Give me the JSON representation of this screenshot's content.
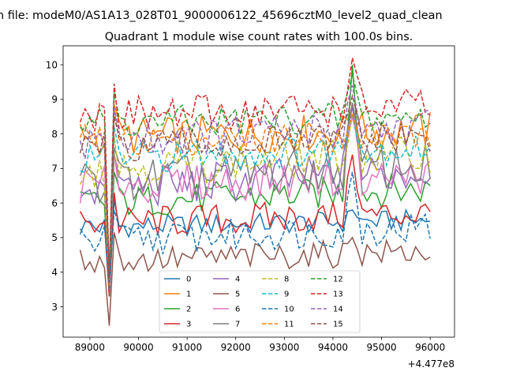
{
  "figure": {
    "suptitle": "n file: modeM0/AS1A13_028T01_9000006122_45696cztM0_level2_quad_clean"
  },
  "chart_data": {
    "type": "line",
    "title": "Quadrant 1 module wise count rates with 100.0s bins.",
    "xlabel": "",
    "ylabel": "",
    "x_offset_label": "+4.477e8",
    "xlim": [
      88450,
      96500
    ],
    "ylim": [
      2.12,
      10.55
    ],
    "x_ticks": [
      89000,
      90000,
      91000,
      92000,
      93000,
      94000,
      95000,
      96000
    ],
    "x_tick_labels": [
      "89000",
      "90000",
      "91000",
      "92000",
      "93000",
      "94000",
      "95000",
      "96000"
    ],
    "y_ticks": [
      3,
      4,
      5,
      6,
      7,
      8,
      9,
      10
    ],
    "y_tick_labels": [
      "3",
      "4",
      "5",
      "6",
      "7",
      "8",
      "9",
      "10"
    ],
    "grid": false,
    "legend": {
      "placement": "lower-center",
      "columns": 4
    },
    "x": {
      "start": 88800,
      "step": 100,
      "count": 73
    },
    "series": [
      {
        "name": "0",
        "color": "#1f77b4",
        "dash": "solid",
        "base": 5.3,
        "dip": 3.3,
        "peak": 5.8,
        "amp": 0.2,
        "trend": 0.2
      },
      {
        "name": "1",
        "color": "#ff7f0e",
        "dash": "solid",
        "base": 7.9,
        "dip": 3.5,
        "peak": 8.8,
        "amp": 0.35,
        "trend": 0.2
      },
      {
        "name": "2",
        "color": "#2ca02c",
        "dash": "solid",
        "base": 6.0,
        "dip": 3.4,
        "peak": 10.0,
        "amp": 0.3,
        "trend": 0.4
      },
      {
        "name": "3",
        "color": "#d62728",
        "dash": "solid",
        "base": 5.4,
        "dip": 3.3,
        "peak": 7.4,
        "amp": 0.3,
        "trend": 0.3
      },
      {
        "name": "4",
        "color": "#9467bd",
        "dash": "solid",
        "base": 6.4,
        "dip": 3.5,
        "peak": 8.8,
        "amp": 0.4,
        "trend": 0.5
      },
      {
        "name": "5",
        "color": "#8c564b",
        "dash": "solid",
        "base": 4.3,
        "dip": 2.45,
        "peak": 5.0,
        "amp": 0.25,
        "trend": 0.3
      },
      {
        "name": "6",
        "color": "#e377c2",
        "dash": "solid",
        "base": 6.5,
        "dip": 3.5,
        "peak": 8.5,
        "amp": 0.35,
        "trend": 0.3
      },
      {
        "name": "7",
        "color": "#7f7f7f",
        "dash": "solid",
        "base": 6.6,
        "dip": 3.5,
        "peak": 8.9,
        "amp": 0.4,
        "trend": 0.5
      },
      {
        "name": "8",
        "color": "#bcbd22",
        "dash": "dashed",
        "base": 7.0,
        "dip": 3.6,
        "peak": 8.6,
        "amp": 0.35,
        "trend": 0.4
      },
      {
        "name": "9",
        "color": "#17becf",
        "dash": "dashed",
        "base": 7.3,
        "dip": 3.6,
        "peak": 8.6,
        "amp": 0.3,
        "trend": 0.3
      },
      {
        "name": "10",
        "color": "#1f77b4",
        "dash": "dashed",
        "base": 4.9,
        "dip": 3.5,
        "peak": 6.9,
        "amp": 0.3,
        "trend": 0.4
      },
      {
        "name": "11",
        "color": "#ff7f0e",
        "dash": "dashed",
        "base": 7.8,
        "dip": 3.6,
        "peak": 8.6,
        "amp": 0.3,
        "trend": 0.2
      },
      {
        "name": "12",
        "color": "#2ca02c",
        "dash": "dashed",
        "base": 8.3,
        "dip": 3.8,
        "peak": 9.7,
        "amp": 0.3,
        "trend": 0.2
      },
      {
        "name": "13",
        "color": "#d62728",
        "dash": "dashed",
        "base": 8.5,
        "dip": 3.9,
        "peak": 10.2,
        "amp": 0.35,
        "trend": 0.3
      },
      {
        "name": "14",
        "color": "#9467bd",
        "dash": "dashed",
        "base": 7.8,
        "dip": 3.7,
        "peak": 9.4,
        "amp": 0.35,
        "trend": 0.4
      },
      {
        "name": "15",
        "color": "#8c564b",
        "dash": "dashed",
        "base": 7.6,
        "dip": 3.7,
        "peak": 9.1,
        "amp": 0.3,
        "trend": 0.3
      }
    ]
  }
}
